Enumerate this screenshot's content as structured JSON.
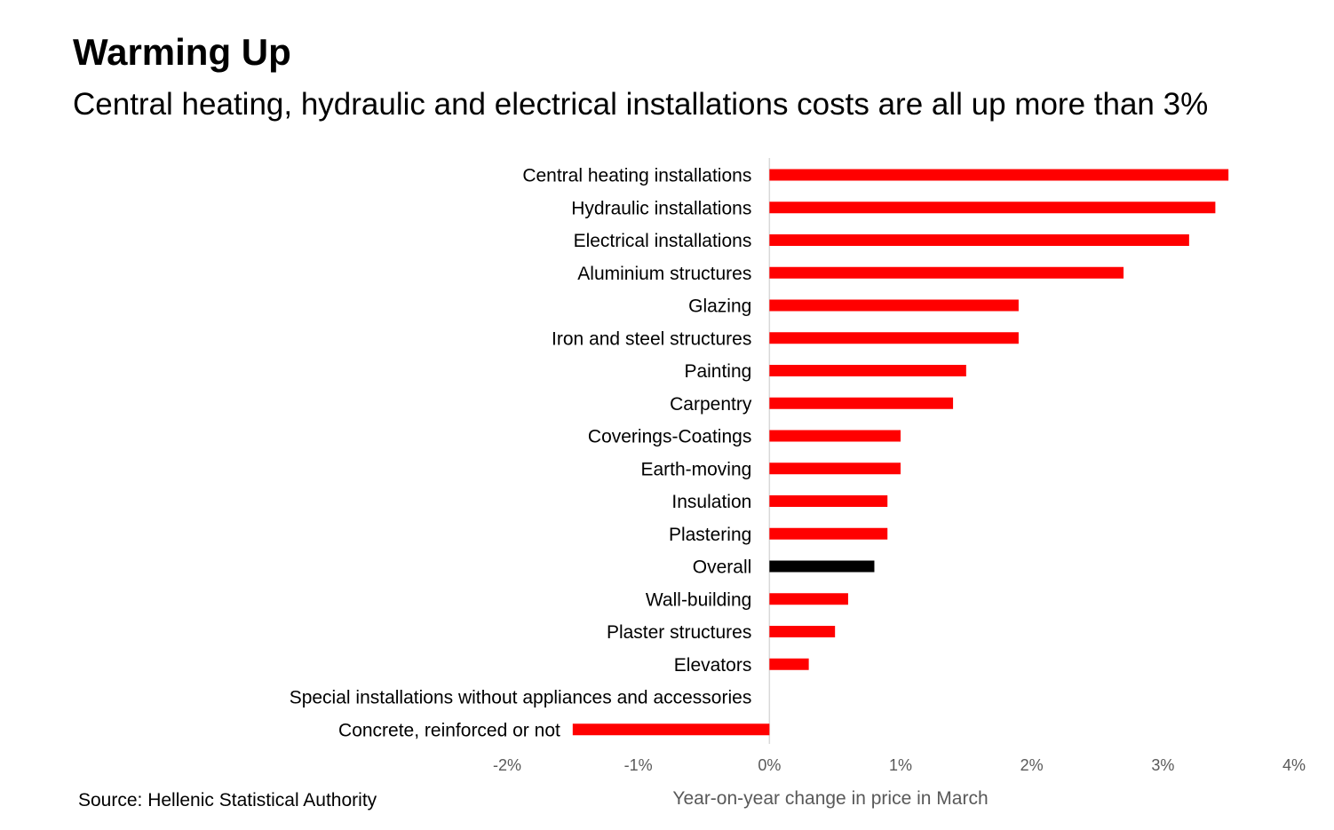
{
  "header": {
    "title": "Warming Up",
    "subtitle": "Central heating, hydraulic and electrical installations costs are all up more than 3%"
  },
  "footer": {
    "source": "Source: Hellenic Statistical Authority"
  },
  "colors": {
    "bar": "#ff0000",
    "highlight": "#000000",
    "axis_text": "#595959",
    "zero_line": "#d9d9d9"
  },
  "chart_data": {
    "type": "bar",
    "orientation": "horizontal",
    "title": "Warming Up",
    "subtitle": "Central heating, hydraulic and electrical installations costs are all up more than 3%",
    "xlabel": "Year-on-year change in price in March",
    "ylabel": "",
    "xlim": [
      -2,
      4
    ],
    "xticks": [
      -2,
      -1,
      0,
      1,
      2,
      3,
      4
    ],
    "xtick_labels": [
      "-2%",
      "-1%",
      "0%",
      "1%",
      "2%",
      "3%",
      "4%"
    ],
    "grid": false,
    "legend": "none",
    "highlight_category": "Overall",
    "categories": [
      "Central heating installations",
      "Hydraulic installations",
      "Electrical installations",
      "Aluminium structures",
      "Glazing",
      "Iron and steel structures",
      "Painting",
      "Carpentry",
      "Coverings-Coatings",
      "Earth-moving",
      "Insulation",
      "Plastering",
      "Overall",
      "Wall-building",
      "Plaster structures",
      "Elevators",
      "Special installations without appliances and accessories",
      "Concrete, reinforced or not"
    ],
    "values": [
      3.5,
      3.4,
      3.2,
      2.7,
      1.9,
      1.9,
      1.5,
      1.4,
      1.0,
      1.0,
      0.9,
      0.9,
      0.8,
      0.6,
      0.5,
      0.3,
      0.0,
      -1.5
    ]
  }
}
